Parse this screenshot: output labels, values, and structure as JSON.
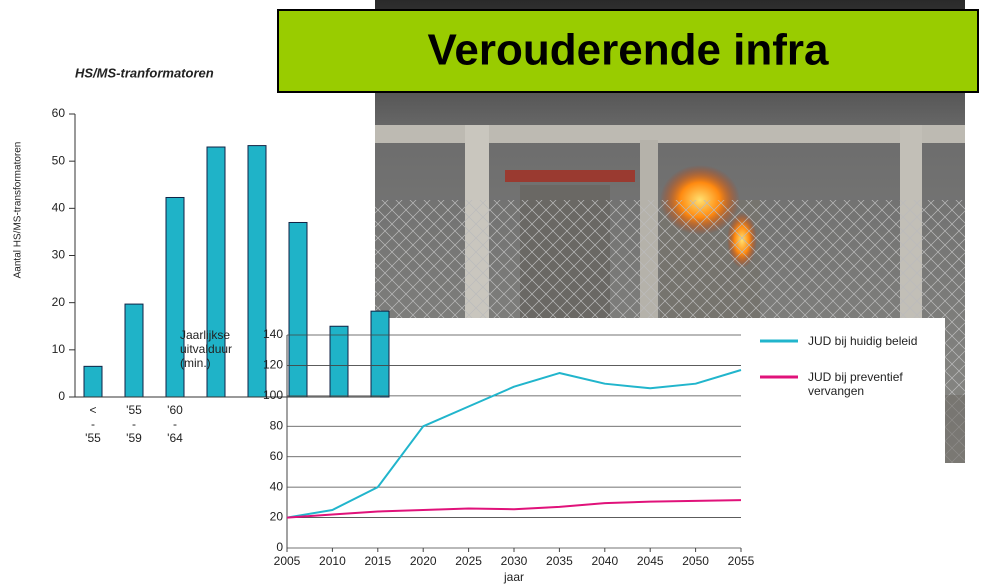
{
  "slide_title": "Verouderende infra",
  "chart_data": [
    {
      "type": "bar",
      "title": "HS/MS-tranformatoren",
      "ylabel": "Aantal HS/MS-transformatoren",
      "categories": [
        "< - '55",
        "'55 - '59",
        "'60 - '64",
        null,
        null,
        null,
        null,
        null
      ],
      "values": [
        6.5,
        19.7,
        42.3,
        53,
        53.3,
        37,
        15,
        18.2
      ],
      "color": "#1fb3c8",
      "ylim": [
        0,
        60
      ],
      "yticks": [
        0,
        10,
        20,
        30,
        40,
        50,
        60
      ]
    },
    {
      "type": "line",
      "ylabel": "Jaarlijkse uitvalduur (min.)",
      "xlabel": "jaar",
      "x": [
        2005,
        2010,
        2015,
        2020,
        2025,
        2030,
        2035,
        2040,
        2045,
        2050,
        2055
      ],
      "series": [
        {
          "name": "JUD bij huidig beleid",
          "color": "#21b5cc",
          "values": [
            20,
            25,
            40,
            80,
            93,
            106,
            115,
            108,
            105,
            108,
            117
          ]
        },
        {
          "name": "JUD bij preventief vervangen",
          "color": "#e0127a",
          "values": [
            20,
            22,
            24,
            25,
            26,
            25.5,
            27,
            29.5,
            30.5,
            31,
            31.5
          ]
        }
      ],
      "xlim": [
        2005,
        2055
      ],
      "xticks": [
        2005,
        2010,
        2015,
        2020,
        2025,
        2030,
        2035,
        2040,
        2045,
        2050,
        2055
      ],
      "ylim": [
        0,
        140
      ],
      "yticks": [
        0,
        20,
        40,
        60,
        80,
        100,
        120,
        140
      ],
      "grid": true
    }
  ]
}
